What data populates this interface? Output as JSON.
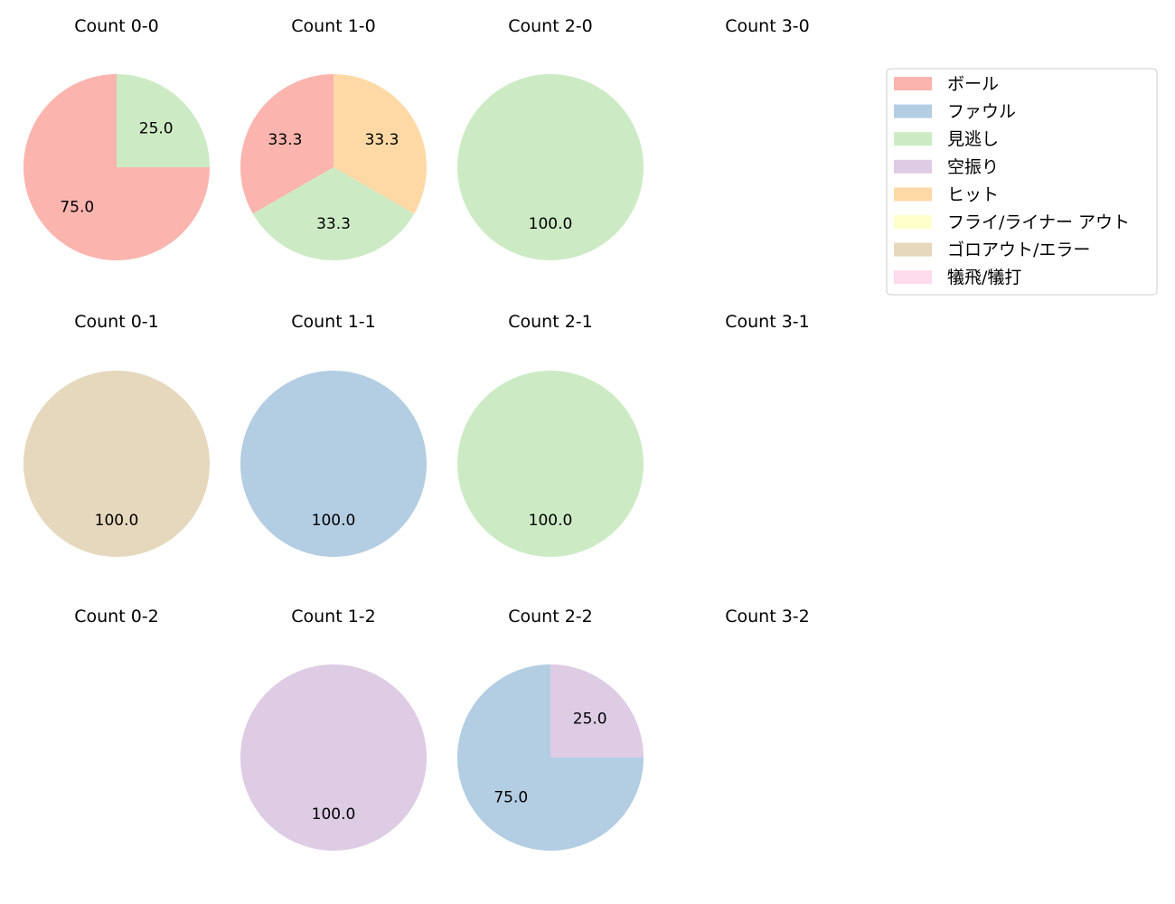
{
  "legend": {
    "placement": "right",
    "entries": [
      {
        "label": "ボール",
        "color": "#fbb4ae"
      },
      {
        "label": "ファウル",
        "color": "#b3cde3"
      },
      {
        "label": "見逃し",
        "color": "#ccebc5"
      },
      {
        "label": "空振り",
        "color": "#decbe4"
      },
      {
        "label": "ヒット",
        "color": "#fed9a6"
      },
      {
        "label": "フライ/ライナー アウト",
        "color": "#ffffcc"
      },
      {
        "label": "ゴロアウト/エラー",
        "color": "#e5d8bd"
      },
      {
        "label": "犠飛/犠打",
        "color": "#fddaec"
      }
    ]
  },
  "chart_data": [
    {
      "type": "pie",
      "title": "Count 0-0",
      "slices": [
        {
          "category": "ボール",
          "value": 75.0
        },
        {
          "category": "見逃し",
          "value": 25.0
        }
      ]
    },
    {
      "type": "pie",
      "title": "Count 1-0",
      "slices": [
        {
          "category": "ボール",
          "value": 33.3
        },
        {
          "category": "見逃し",
          "value": 33.3
        },
        {
          "category": "ヒット",
          "value": 33.3
        }
      ]
    },
    {
      "type": "pie",
      "title": "Count 2-0",
      "slices": [
        {
          "category": "見逃し",
          "value": 100.0
        }
      ]
    },
    {
      "type": "pie",
      "title": "Count 3-0",
      "slices": []
    },
    {
      "type": "pie",
      "title": "Count 0-1",
      "slices": [
        {
          "category": "ゴロアウト/エラー",
          "value": 100.0
        }
      ]
    },
    {
      "type": "pie",
      "title": "Count 1-1",
      "slices": [
        {
          "category": "ファウル",
          "value": 100.0
        }
      ]
    },
    {
      "type": "pie",
      "title": "Count 2-1",
      "slices": [
        {
          "category": "見逃し",
          "value": 100.0
        }
      ]
    },
    {
      "type": "pie",
      "title": "Count 3-1",
      "slices": []
    },
    {
      "type": "pie",
      "title": "Count 0-2",
      "slices": []
    },
    {
      "type": "pie",
      "title": "Count 1-2",
      "slices": [
        {
          "category": "空振り",
          "value": 100.0
        }
      ]
    },
    {
      "type": "pie",
      "title": "Count 2-2",
      "slices": [
        {
          "category": "ファウル",
          "value": 75.0
        },
        {
          "category": "空振り",
          "value": 25.0
        }
      ]
    },
    {
      "type": "pie",
      "title": "Count 3-2",
      "slices": []
    }
  ]
}
